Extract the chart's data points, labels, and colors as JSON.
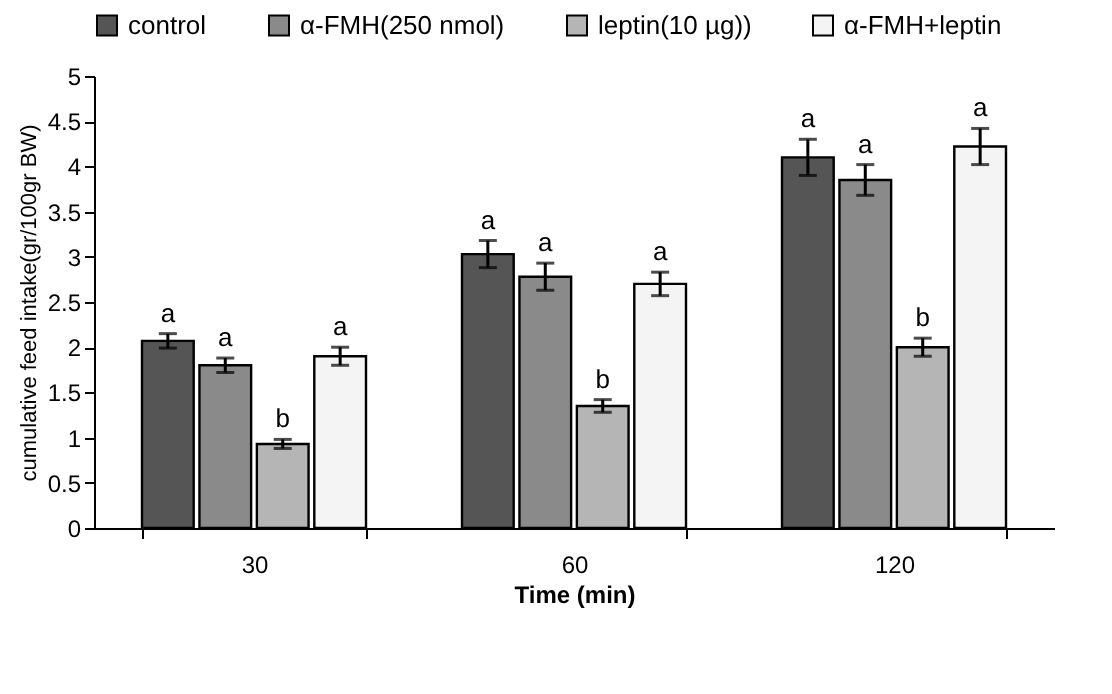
{
  "chart_data": {
    "type": "bar",
    "xlabel": "Time (min)",
    "ylabel": "cumulative feed intake(gr/100gr BW)",
    "categories": [
      "30",
      "60",
      "120"
    ],
    "series": [
      {
        "name": "control",
        "color": "#555555",
        "values": [
          2.07,
          3.03,
          4.1
        ],
        "errors": [
          0.08,
          0.15,
          0.2
        ],
        "value_labels": [
          "a",
          "a",
          "a"
        ]
      },
      {
        "name": "α-FMH(250 nmol)",
        "color": "#8a8a8a",
        "values": [
          1.8,
          2.78,
          3.85
        ],
        "errors": [
          0.08,
          0.15,
          0.17
        ],
        "value_labels": [
          "a",
          "a",
          "a"
        ]
      },
      {
        "name": "leptin(10 µg))",
        "color": "#b5b5b5",
        "values": [
          0.93,
          1.35,
          2.0
        ],
        "errors": [
          0.05,
          0.07,
          0.1
        ],
        "value_labels": [
          "b",
          "b",
          "b"
        ]
      },
      {
        "name": "α-FMH+leptin",
        "color": "#f4f4f4",
        "values": [
          1.9,
          2.7,
          4.22
        ],
        "errors": [
          0.1,
          0.13,
          0.2
        ],
        "value_labels": [
          "a",
          "a",
          "a"
        ]
      }
    ],
    "ylim": [
      0,
      5
    ],
    "yticks": [
      0,
      0.5,
      1,
      1.5,
      2,
      2.5,
      3,
      3.5,
      4,
      4.5,
      5
    ],
    "grid": false,
    "legend": "top"
  }
}
